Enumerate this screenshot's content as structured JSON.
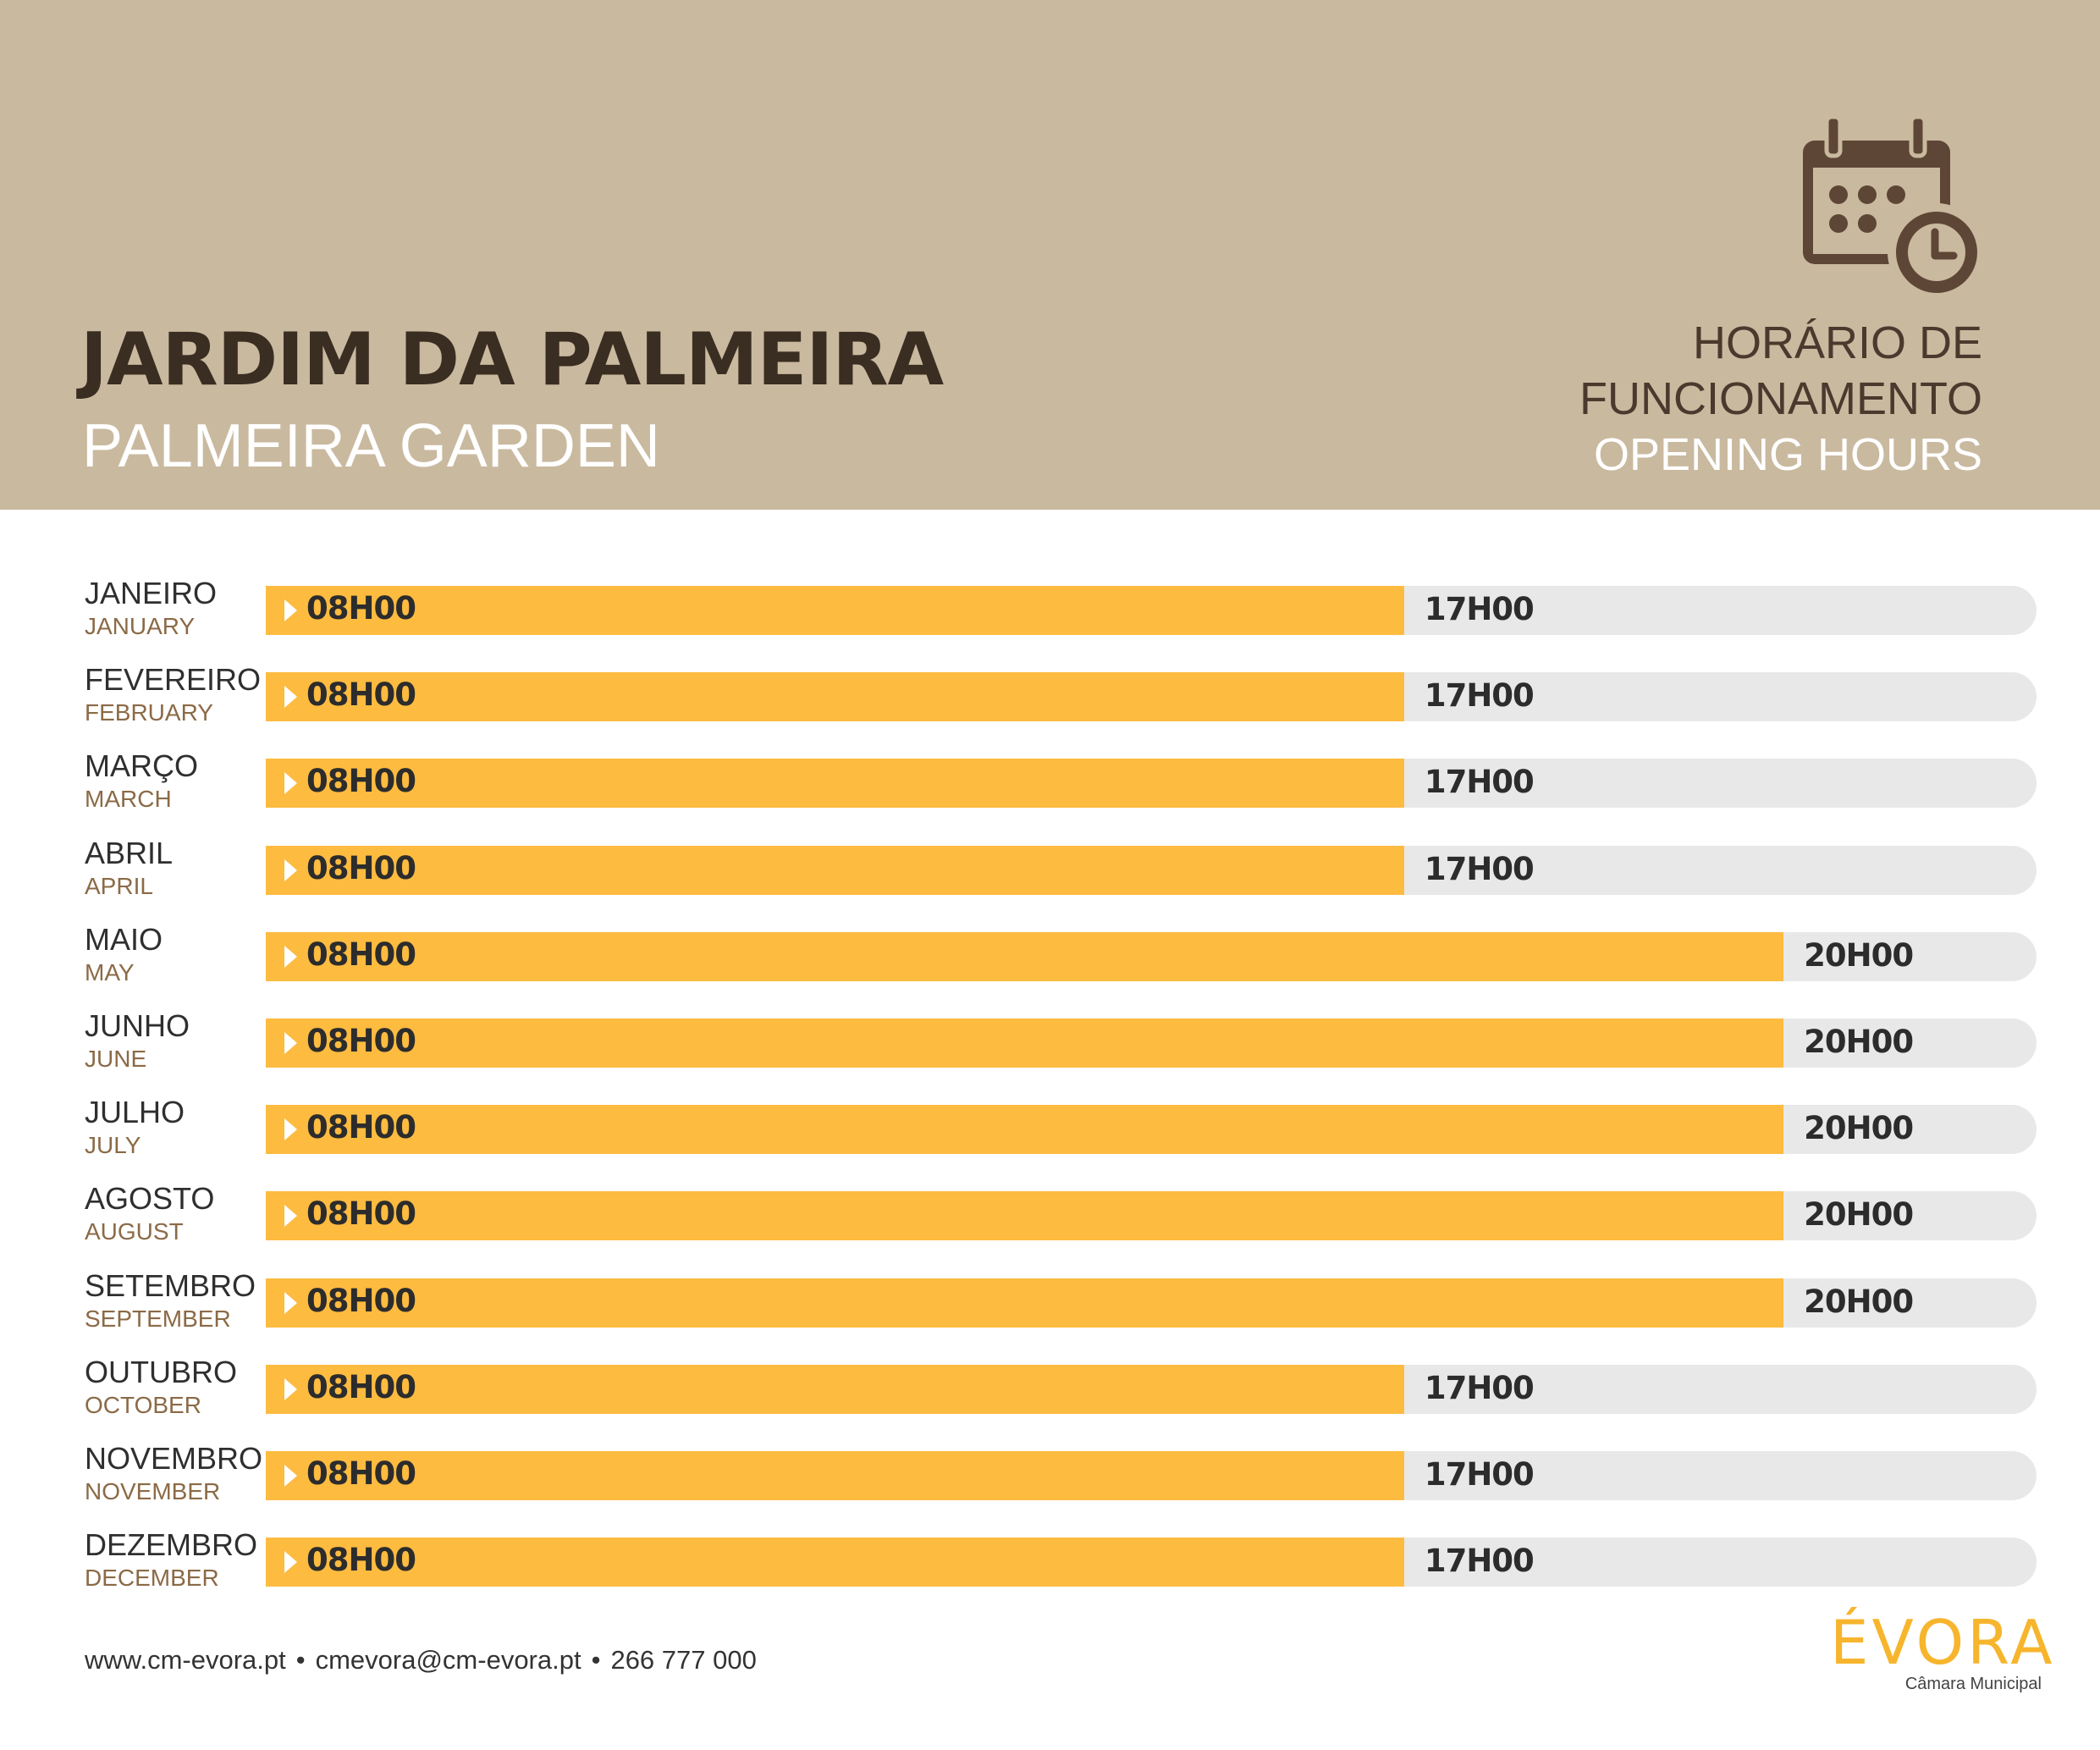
{
  "header": {
    "title_pt": "JARDIM DA PALMEIRA",
    "title_en": "PALMEIRA GARDEN",
    "hours_title_line1": "HORÁRIO DE",
    "hours_title_line2": "FUNCIONAMENTO",
    "hours_subtitle": "OPENING HOURS",
    "icon": "calendar-clock-icon"
  },
  "chart_data": {
    "type": "bar",
    "orientation": "horizontal",
    "x_unit": "hour of day",
    "xlim": [
      8,
      22
    ],
    "categories": [
      "JANEIRO",
      "FEVEREIRO",
      "MARÇO",
      "ABRIL",
      "MAIO",
      "JUNHO",
      "JULHO",
      "AGOSTO",
      "SETEMBRO",
      "OUTUBRO",
      "NOVEMBRO",
      "DEZEMBRO"
    ],
    "categories_en": [
      "JANUARY",
      "FEBRUARY",
      "MARCH",
      "APRIL",
      "MAY",
      "JUNE",
      "JULY",
      "AUGUST",
      "SEPTEMBER",
      "OCTOBER",
      "NOVEMBER",
      "DECEMBER"
    ],
    "open": [
      8,
      8,
      8,
      8,
      8,
      8,
      8,
      8,
      8,
      8,
      8,
      8
    ],
    "close": [
      17,
      17,
      17,
      17,
      20,
      20,
      20,
      20,
      20,
      17,
      17,
      17
    ],
    "open_labels": [
      "08H00",
      "08H00",
      "08H00",
      "08H00",
      "08H00",
      "08H00",
      "08H00",
      "08H00",
      "08H00",
      "08H00",
      "08H00",
      "08H00"
    ],
    "close_labels": [
      "17H00",
      "17H00",
      "17H00",
      "17H00",
      "20H00",
      "20H00",
      "20H00",
      "20H00",
      "20H00",
      "17H00",
      "17H00",
      "17H00"
    ]
  },
  "footer": {
    "website": "www.cm-evora.pt",
    "email": "cmevora@cm-evora.pt",
    "phone": "266 777 000",
    "separator": "•"
  },
  "logo": {
    "name": "ÉVORA",
    "subtitle": "Câmara Municipal"
  },
  "colors": {
    "header_bg": "#c9b99f",
    "bar_fill": "#fdbb40",
    "track": "#e8e8e8",
    "title_dark": "#3a2d22",
    "icon_brown": "#5e4636"
  }
}
